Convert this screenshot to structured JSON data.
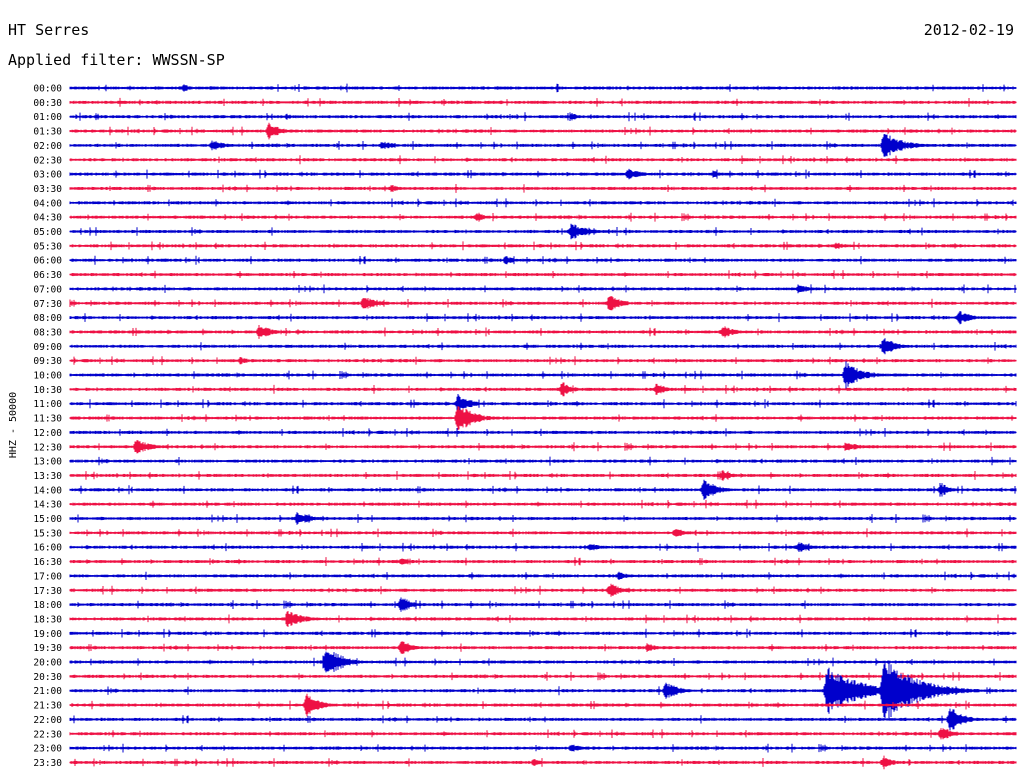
{
  "header": {
    "station": "HT Serres",
    "date": "2012-02-19",
    "filter": "Applied filter: WWSSN-SP"
  },
  "chart_data": {
    "type": "line",
    "title": "HT Serres",
    "ylabel": "HHZ - 50000",
    "row_labels": [
      "00:00",
      "00:30",
      "01:00",
      "01:30",
      "02:00",
      "02:30",
      "03:00",
      "03:30",
      "04:00",
      "04:30",
      "05:00",
      "05:30",
      "06:00",
      "06:30",
      "07:00",
      "07:30",
      "08:00",
      "08:30",
      "09:00",
      "09:30",
      "10:00",
      "10:30",
      "11:00",
      "11:30",
      "12:00",
      "12:30",
      "13:00",
      "13:30",
      "14:00",
      "14:30",
      "15:00",
      "15:30",
      "16:00",
      "16:30",
      "17:00",
      "17:30",
      "18:00",
      "18:30",
      "19:00",
      "19:30",
      "20:00",
      "20:30",
      "21:00",
      "21:30",
      "22:00",
      "22:30",
      "23:00",
      "23:30"
    ],
    "series_colors": [
      "#0000cc",
      "#ee1144"
    ],
    "x_range_minutes": [
      0,
      30
    ],
    "events": [
      {
        "row": 0,
        "t": 0.12,
        "amp": 4,
        "dur": 0.03
      },
      {
        "row": 2,
        "t": 0.53,
        "amp": 4,
        "dur": 0.03
      },
      {
        "row": 3,
        "t": 0.21,
        "amp": 9,
        "dur": 0.04
      },
      {
        "row": 4,
        "t": 0.15,
        "amp": 5,
        "dur": 0.05
      },
      {
        "row": 4,
        "t": 0.33,
        "amp": 5,
        "dur": 0.04
      },
      {
        "row": 4,
        "t": 0.86,
        "amp": 14,
        "dur": 0.06
      },
      {
        "row": 6,
        "t": 0.59,
        "amp": 6,
        "dur": 0.04
      },
      {
        "row": 6,
        "t": 0.68,
        "amp": 4,
        "dur": 0.03
      },
      {
        "row": 7,
        "t": 0.34,
        "amp": 4,
        "dur": 0.03
      },
      {
        "row": 9,
        "t": 0.43,
        "amp": 5,
        "dur": 0.03
      },
      {
        "row": 10,
        "t": 0.53,
        "amp": 9,
        "dur": 0.05
      },
      {
        "row": 11,
        "t": 0.81,
        "amp": 4,
        "dur": 0.03
      },
      {
        "row": 12,
        "t": 0.46,
        "amp": 5,
        "dur": 0.03
      },
      {
        "row": 14,
        "t": 0.77,
        "amp": 5,
        "dur": 0.04
      },
      {
        "row": 15,
        "t": 0.31,
        "amp": 8,
        "dur": 0.05
      },
      {
        "row": 15,
        "t": 0.57,
        "amp": 9,
        "dur": 0.04
      },
      {
        "row": 16,
        "t": 0.94,
        "amp": 7,
        "dur": 0.04
      },
      {
        "row": 17,
        "t": 0.2,
        "amp": 8,
        "dur": 0.04
      },
      {
        "row": 17,
        "t": 0.69,
        "amp": 7,
        "dur": 0.04
      },
      {
        "row": 18,
        "t": 0.86,
        "amp": 10,
        "dur": 0.04
      },
      {
        "row": 19,
        "t": 0.18,
        "amp": 4,
        "dur": 0.03
      },
      {
        "row": 20,
        "t": 0.82,
        "amp": 14,
        "dur": 0.05
      },
      {
        "row": 21,
        "t": 0.52,
        "amp": 9,
        "dur": 0.03
      },
      {
        "row": 21,
        "t": 0.62,
        "amp": 8,
        "dur": 0.03
      },
      {
        "row": 22,
        "t": 0.41,
        "amp": 10,
        "dur": 0.04
      },
      {
        "row": 23,
        "t": 0.41,
        "amp": 16,
        "dur": 0.05
      },
      {
        "row": 25,
        "t": 0.07,
        "amp": 8,
        "dur": 0.05
      },
      {
        "row": 25,
        "t": 0.82,
        "amp": 4,
        "dur": 0.08
      },
      {
        "row": 27,
        "t": 0.69,
        "amp": 6,
        "dur": 0.03
      },
      {
        "row": 28,
        "t": 0.67,
        "amp": 12,
        "dur": 0.04
      },
      {
        "row": 28,
        "t": 0.92,
        "amp": 8,
        "dur": 0.03
      },
      {
        "row": 30,
        "t": 0.24,
        "amp": 7,
        "dur": 0.05
      },
      {
        "row": 31,
        "t": 0.64,
        "amp": 6,
        "dur": 0.03
      },
      {
        "row": 32,
        "t": 0.55,
        "amp": 5,
        "dur": 0.03
      },
      {
        "row": 32,
        "t": 0.77,
        "amp": 6,
        "dur": 0.04
      },
      {
        "row": 33,
        "t": 0.35,
        "amp": 4,
        "dur": 0.03
      },
      {
        "row": 34,
        "t": 0.58,
        "amp": 5,
        "dur": 0.03
      },
      {
        "row": 35,
        "t": 0.57,
        "amp": 8,
        "dur": 0.04
      },
      {
        "row": 36,
        "t": 0.35,
        "amp": 10,
        "dur": 0.03
      },
      {
        "row": 37,
        "t": 0.23,
        "amp": 9,
        "dur": 0.05
      },
      {
        "row": 39,
        "t": 0.35,
        "amp": 8,
        "dur": 0.04
      },
      {
        "row": 39,
        "t": 0.61,
        "amp": 5,
        "dur": 0.03
      },
      {
        "row": 40,
        "t": 0.27,
        "amp": 18,
        "dur": 0.05
      },
      {
        "row": 42,
        "t": 0.63,
        "amp": 10,
        "dur": 0.04
      },
      {
        "row": 42,
        "t": 0.8,
        "amp": 26,
        "dur": 0.1
      },
      {
        "row": 42,
        "t": 0.86,
        "amp": 36,
        "dur": 0.1
      },
      {
        "row": 43,
        "t": 0.25,
        "amp": 12,
        "dur": 0.04
      },
      {
        "row": 44,
        "t": 0.93,
        "amp": 14,
        "dur": 0.04
      },
      {
        "row": 45,
        "t": 0.92,
        "amp": 8,
        "dur": 0.04
      },
      {
        "row": 46,
        "t": 0.53,
        "amp": 5,
        "dur": 0.03
      },
      {
        "row": 47,
        "t": 0.49,
        "amp": 4,
        "dur": 0.03
      },
      {
        "row": 47,
        "t": 0.86,
        "amp": 8,
        "dur": 0.03
      }
    ]
  }
}
